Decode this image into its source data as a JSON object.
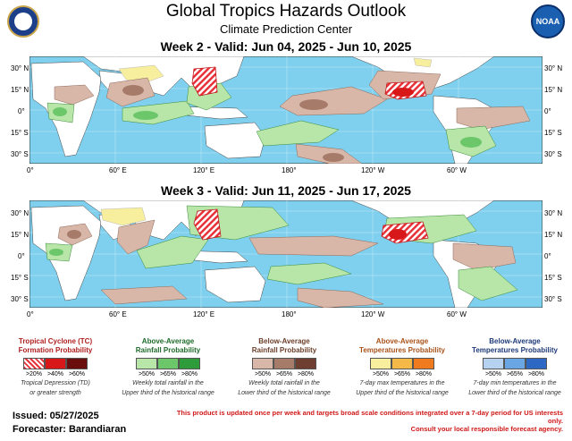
{
  "header": {
    "title": "Global Tropics Hazards Outlook",
    "subtitle": "Climate Prediction Center",
    "noaa_logo_text": "NOAA"
  },
  "week2": {
    "title": "Week 2 - Valid: Jun 04, 2025 - Jun 10, 2025"
  },
  "week3": {
    "title": "Week 3 - Valid: Jun 11, 2025 - Jun 17, 2025"
  },
  "axes": {
    "lat_labels": [
      "30° N",
      "15° N",
      "0°",
      "15° S",
      "30° S"
    ],
    "lon_labels": [
      "0°",
      "60° E",
      "120° E",
      "180°",
      "120° W",
      "60° W"
    ]
  },
  "legend": {
    "tc": {
      "title1": "Tropical Cyclone (TC)",
      "title2": "Formation Probability",
      "labels": [
        ">20%",
        ">40%",
        ">60%"
      ],
      "note1": "Tropical Depression (TD)",
      "note2": "or greater strength",
      "colors": [
        "#e8323a",
        "#d81818",
        "#6a0d0d"
      ]
    },
    "above_rain": {
      "title1": "Above-Average",
      "title2": "Rainfall Probability",
      "labels": [
        ">50%",
        ">65%",
        ">80%"
      ],
      "note1": "Weekly total rainfall in the",
      "note2": "Upper third of the historical range",
      "colors": [
        "#b7e6a8",
        "#6cc66a",
        "#2e9c3a"
      ]
    },
    "below_rain": {
      "title1": "Below-Average",
      "title2": "Rainfall Probability",
      "labels": [
        ">50%",
        ">65%",
        ">80%"
      ],
      "note1": "Weekly total rainfall in the",
      "note2": "Lower third of the historical range",
      "colors": [
        "#d8b6a8",
        "#a77b6a",
        "#6e3f30"
      ]
    },
    "above_temp": {
      "title1": "Above-Average",
      "title2": "Temperatures Probability",
      "labels": [
        ">50%",
        ">65%",
        ">80%"
      ],
      "note1": "7-day max temperatures in the",
      "note2": "Upper third of the historical range",
      "colors": [
        "#f7ef9e",
        "#f5b948",
        "#f07a1e"
      ]
    },
    "below_temp": {
      "title1": "Below-Average",
      "title2": "Temperatures Probability",
      "labels": [
        ">50%",
        ">65%",
        ">80%"
      ],
      "note1": "7-day min temperatures in the",
      "note2": "Lower third of the historical range",
      "colors": [
        "#b5d3f0",
        "#6aa6e3",
        "#2d68c4"
      ]
    }
  },
  "footer": {
    "issued": "Issued: 05/27/2025",
    "forecaster": "Forecaster: Barandiaran",
    "disclaimer1": "This product is updated once per week and targets broad scale conditions integrated over a 7-day period for US interests only.",
    "disclaimer2": "Consult your local responsible forecast agency."
  }
}
